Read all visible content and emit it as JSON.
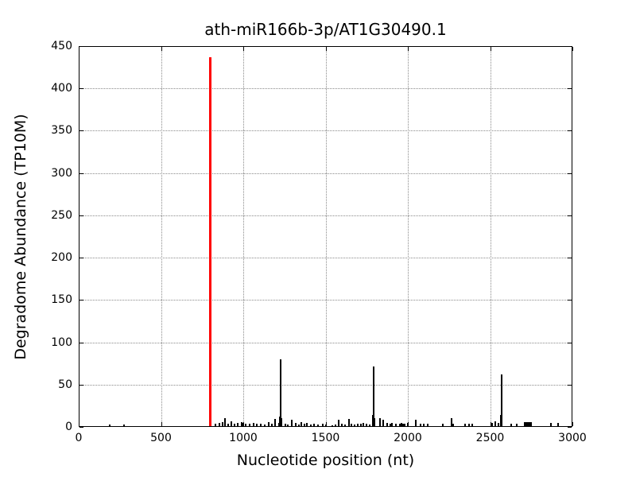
{
  "chart_data": {
    "type": "bar",
    "title": "ath-miR166b-3p/AT1G30490.1",
    "xlabel": "Nucleotide position (nt)",
    "ylabel": "Degradome Abundance (TP10M)",
    "xlim": [
      0,
      3000
    ],
    "ylim": [
      0,
      450
    ],
    "x_ticks": [
      0,
      500,
      1000,
      1500,
      2000,
      2500,
      3000
    ],
    "x_tick_labels": [
      "0",
      "500",
      "1000",
      "1500",
      "2000",
      "2500",
      "3000"
    ],
    "y_ticks": [
      0,
      50,
      100,
      150,
      200,
      250,
      300,
      350,
      400,
      450
    ],
    "y_tick_labels": [
      "0",
      "50",
      "100",
      "150",
      "200",
      "250",
      "300",
      "350",
      "400",
      "450"
    ],
    "grid": "dotted",
    "legend": "none",
    "colors": {
      "bar": "#000000",
      "highlight": "#ff0000",
      "grid": "#8a8a8a"
    },
    "highlight_bar": {
      "x": 800,
      "value": 437,
      "color": "#ff0000"
    },
    "bars": [
      [
        190,
        3
      ],
      [
        275,
        3
      ],
      [
        830,
        4
      ],
      [
        855,
        5
      ],
      [
        872,
        6
      ],
      [
        888,
        10
      ],
      [
        910,
        4
      ],
      [
        928,
        7
      ],
      [
        945,
        4
      ],
      [
        968,
        5
      ],
      [
        988,
        6
      ],
      [
        1002,
        5
      ],
      [
        1016,
        4
      ],
      [
        1040,
        4
      ],
      [
        1064,
        5
      ],
      [
        1084,
        4
      ],
      [
        1108,
        4
      ],
      [
        1130,
        3
      ],
      [
        1155,
        6
      ],
      [
        1172,
        4
      ],
      [
        1195,
        9
      ],
      [
        1218,
        5
      ],
      [
        1224,
        12
      ],
      [
        1229,
        80
      ],
      [
        1234,
        10
      ],
      [
        1255,
        4
      ],
      [
        1270,
        3
      ],
      [
        1296,
        8
      ],
      [
        1320,
        5
      ],
      [
        1340,
        3
      ],
      [
        1355,
        6
      ],
      [
        1372,
        4
      ],
      [
        1388,
        5
      ],
      [
        1410,
        3
      ],
      [
        1430,
        4
      ],
      [
        1455,
        3
      ],
      [
        1481,
        4
      ],
      [
        1500,
        3
      ],
      [
        1540,
        2
      ],
      [
        1560,
        3
      ],
      [
        1581,
        8
      ],
      [
        1597,
        4
      ],
      [
        1620,
        3
      ],
      [
        1642,
        9
      ],
      [
        1655,
        4
      ],
      [
        1675,
        3
      ],
      [
        1694,
        4
      ],
      [
        1713,
        4
      ],
      [
        1728,
        5
      ],
      [
        1750,
        4
      ],
      [
        1770,
        3
      ],
      [
        1786,
        14
      ],
      [
        1790,
        71
      ],
      [
        1795,
        10
      ],
      [
        1829,
        10
      ],
      [
        1848,
        8
      ],
      [
        1873,
        5
      ],
      [
        1892,
        4
      ],
      [
        1901,
        5
      ],
      [
        1926,
        4
      ],
      [
        1950,
        4
      ],
      [
        1960,
        5
      ],
      [
        1970,
        4
      ],
      [
        1979,
        4
      ],
      [
        1998,
        5
      ],
      [
        2047,
        8
      ],
      [
        2076,
        4
      ],
      [
        2095,
        4
      ],
      [
        2119,
        4
      ],
      [
        2211,
        4
      ],
      [
        2265,
        10
      ],
      [
        2274,
        4
      ],
      [
        2347,
        4
      ],
      [
        2371,
        4
      ],
      [
        2390,
        4
      ],
      [
        2511,
        5
      ],
      [
        2531,
        7
      ],
      [
        2550,
        5
      ],
      [
        2565,
        14
      ],
      [
        2569,
        62
      ],
      [
        2627,
        4
      ],
      [
        2661,
        4
      ],
      [
        2711,
        6
      ],
      [
        2720,
        6
      ],
      [
        2729,
        6
      ],
      [
        2738,
        6
      ],
      [
        2747,
        6
      ],
      [
        2869,
        5
      ],
      [
        2913,
        5
      ]
    ]
  }
}
